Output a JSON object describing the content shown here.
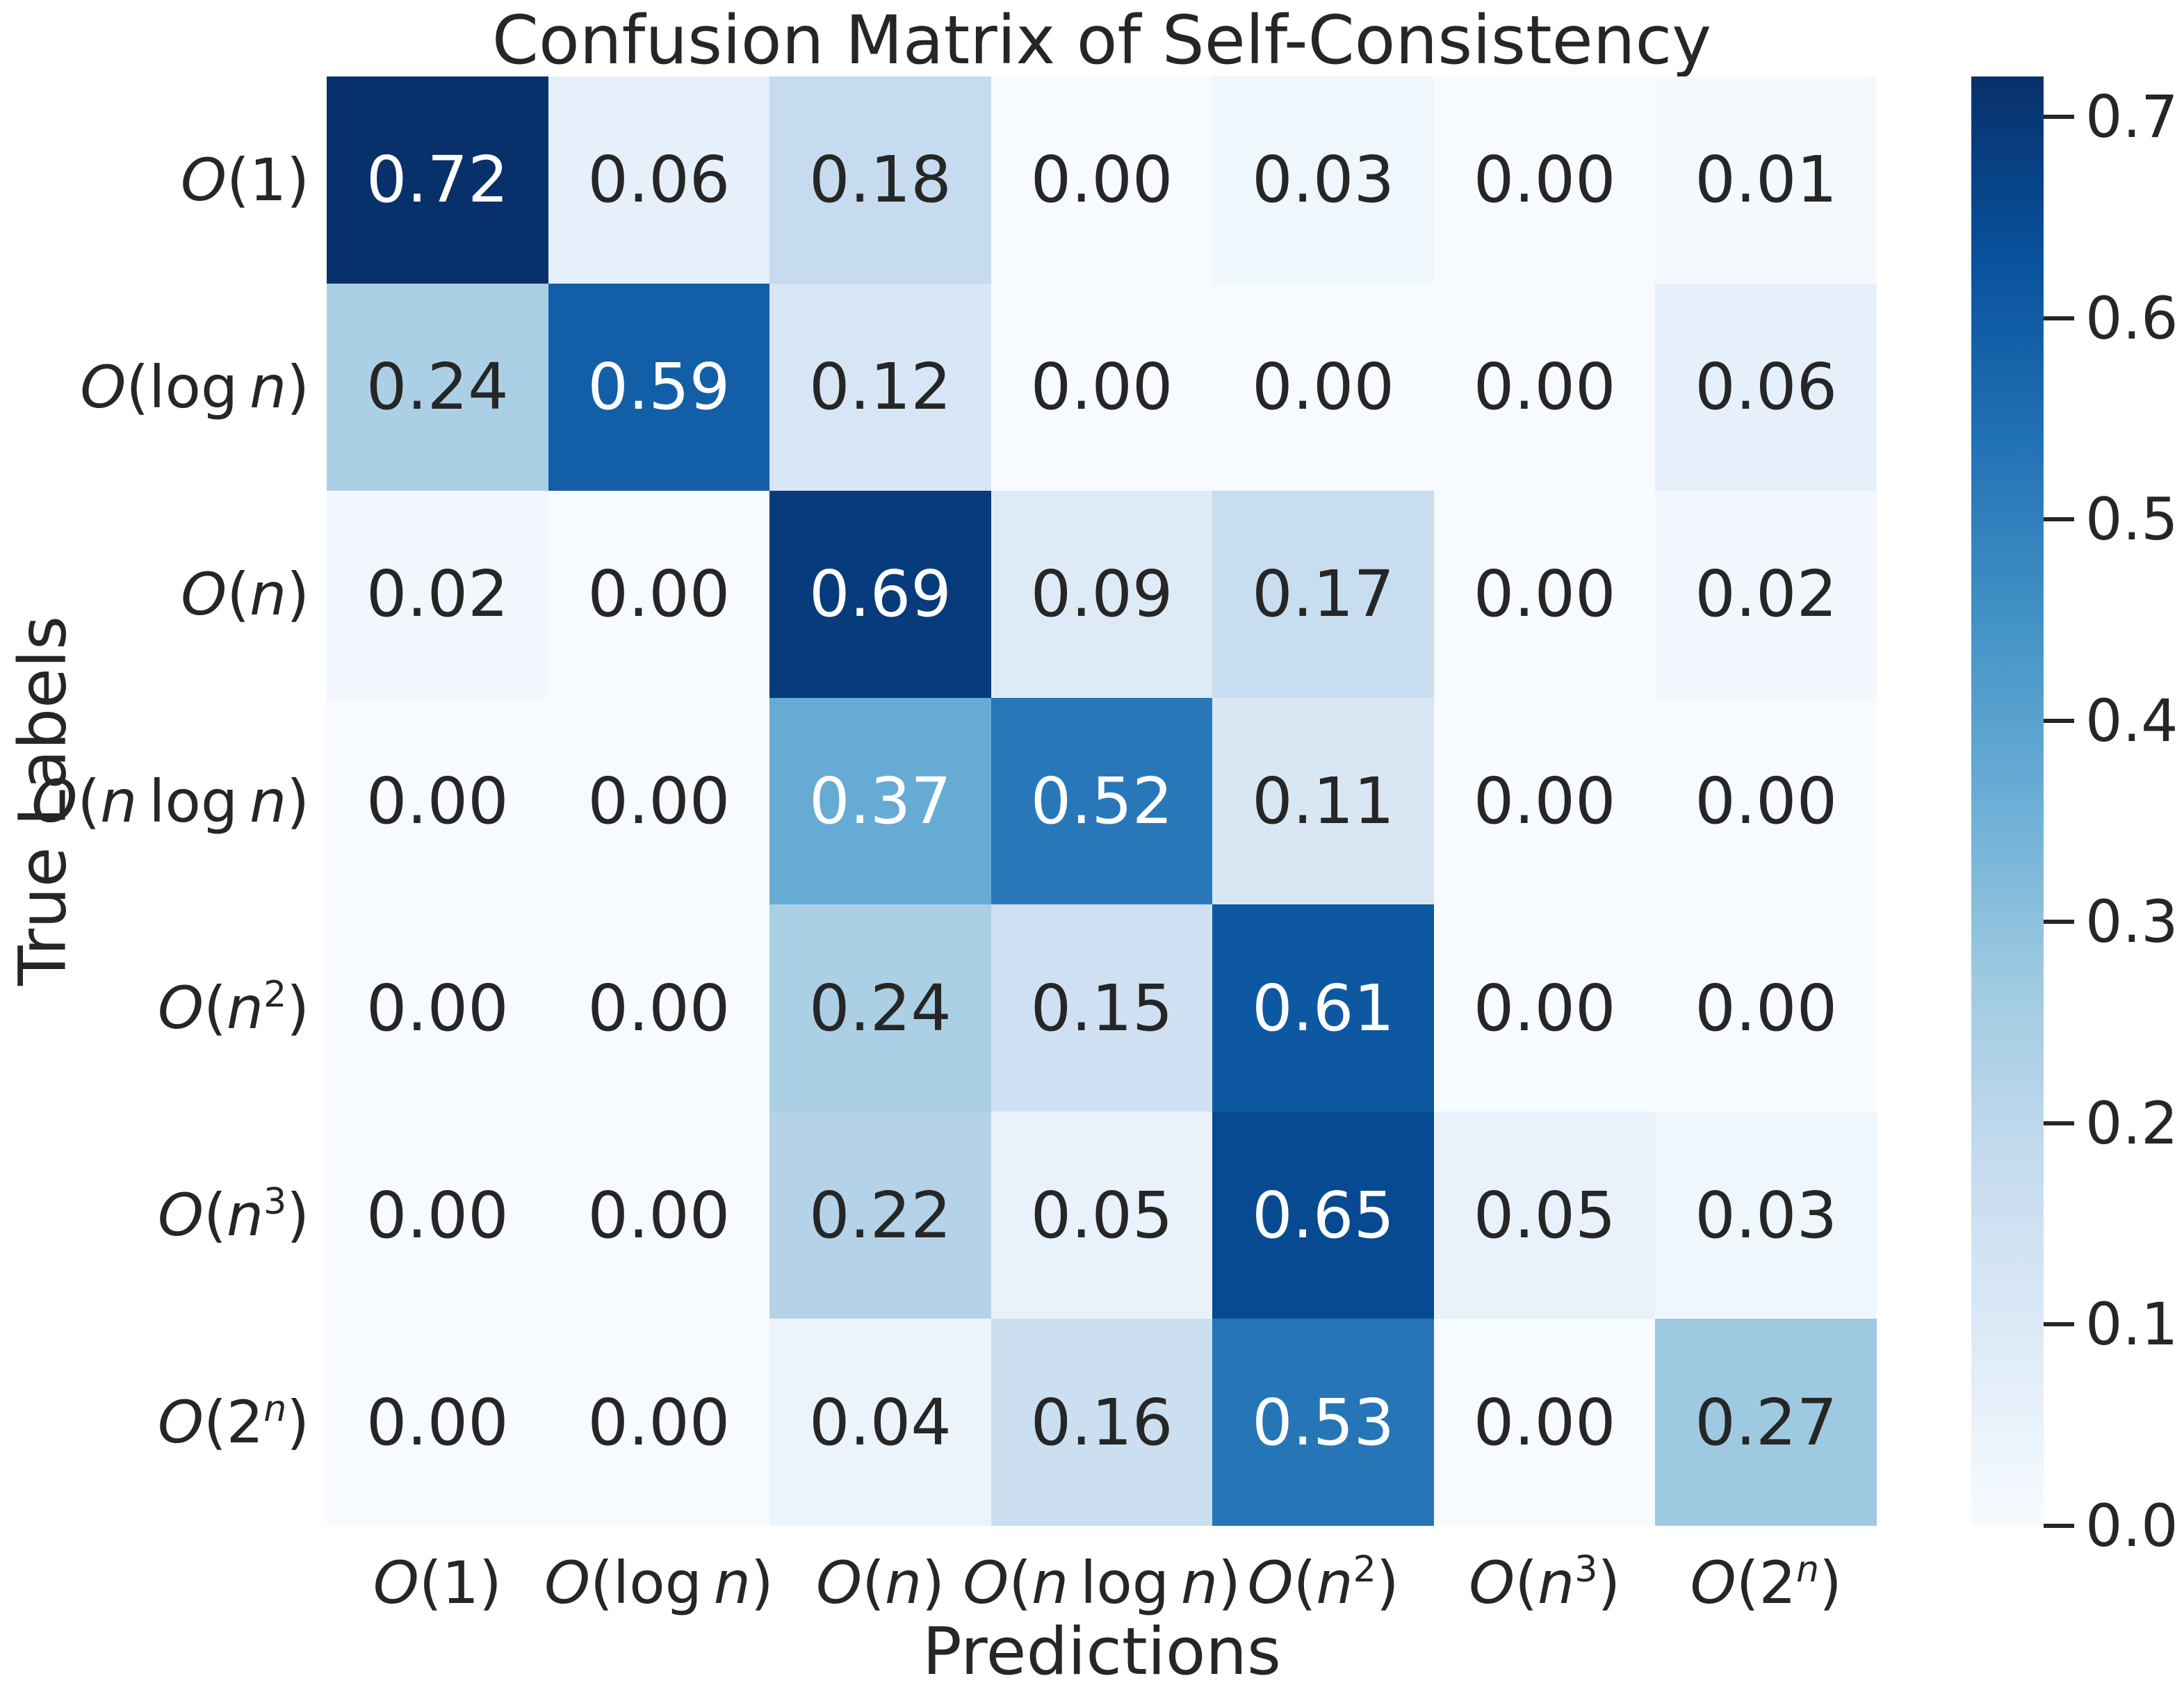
{
  "title": "Confusion Matrix of Self-Consistency",
  "axes": {
    "x_label": "Predictions",
    "y_label": "True Labels"
  },
  "chart_data": {
    "type": "heatmap",
    "x_tick_labels": [
      "O(1)",
      "O(log n)",
      "O(n)",
      "O(n log n)",
      "O(n^2)",
      "O(n^3)",
      "O(2^n)"
    ],
    "y_tick_labels": [
      "O(1)",
      "O(log n)",
      "O(n)",
      "O(n log n)",
      "O(n^2)",
      "O(n^3)",
      "O(2^n)"
    ],
    "values": [
      [
        0.72,
        0.06,
        0.18,
        0.0,
        0.03,
        0.0,
        0.01
      ],
      [
        0.24,
        0.59,
        0.12,
        0.0,
        0.0,
        0.0,
        0.06
      ],
      [
        0.02,
        0.0,
        0.69,
        0.09,
        0.17,
        0.0,
        0.02
      ],
      [
        0.0,
        0.0,
        0.37,
        0.52,
        0.11,
        0.0,
        0.0
      ],
      [
        0.0,
        0.0,
        0.24,
        0.15,
        0.61,
        0.0,
        0.0
      ],
      [
        0.0,
        0.0,
        0.22,
        0.05,
        0.65,
        0.05,
        0.03
      ],
      [
        0.0,
        0.0,
        0.04,
        0.16,
        0.53,
        0.0,
        0.27
      ]
    ],
    "value_format": "2-decimals",
    "colormap": "Blues",
    "vmin": 0.0,
    "vmax": 0.72,
    "colorbar_ticks": [
      0.0,
      0.1,
      0.2,
      0.3,
      0.4,
      0.5,
      0.6,
      0.7
    ],
    "colorbar_position": "right",
    "grid": false
  },
  "colors": {
    "background": "#ffffff",
    "text": "#262626",
    "annotation_dark": "#262626",
    "annotation_light": "#ffffff",
    "cmap_low": "#f7fbff",
    "cmap_high": "#08306b"
  }
}
